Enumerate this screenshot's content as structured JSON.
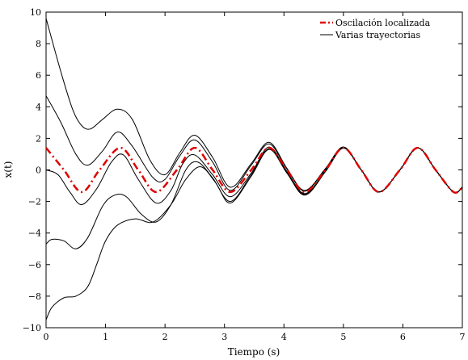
{
  "chart_data": {
    "type": "line",
    "title": "",
    "xlabel": "Tiempo (s)",
    "ylabel": "x(t)",
    "xlim": [
      0,
      7
    ],
    "ylim": [
      -10,
      10
    ],
    "xticks": [
      "0",
      "1",
      "2",
      "3",
      "4",
      "5",
      "6",
      "7"
    ],
    "yticks": [
      "10",
      "8",
      "6",
      "4",
      "2",
      "0",
      "−2",
      "−4",
      "−6",
      "−8",
      "−10"
    ],
    "grid": false,
    "legend_position": "top-right",
    "legend": [
      {
        "label": "Oscilación localizada",
        "style": "dash-dot",
        "color": "#e00000"
      },
      {
        "label": "Varias trayectorias",
        "style": "solid",
        "color": "#000000"
      }
    ],
    "series": [
      {
        "name": "Oscilación localizada",
        "color": "#e00000",
        "style": "dash-dot",
        "x": [
          0.0,
          0.3,
          0.6,
          0.9,
          1.25,
          1.55,
          1.85,
          2.2,
          2.5,
          2.8,
          3.1,
          3.45,
          3.75,
          4.05,
          4.35,
          4.7,
          5.0,
          5.3,
          5.6,
          5.95,
          6.25,
          6.55,
          6.85,
          7.0
        ],
        "y": [
          1.4,
          0.0,
          -1.4,
          0.0,
          1.4,
          0.0,
          -1.4,
          0.0,
          1.4,
          0.0,
          -1.4,
          0.0,
          1.4,
          0.0,
          -1.4,
          0.0,
          1.4,
          0.0,
          -1.4,
          0.0,
          1.4,
          0.0,
          -1.4,
          -1.1
        ]
      },
      {
        "name": "",
        "color": "#000000",
        "style": "solid",
        "x": [
          0.0,
          0.25,
          0.45,
          0.6,
          0.75,
          0.95,
          1.2,
          1.45,
          1.75,
          2.0,
          2.25,
          2.5,
          2.8,
          3.1,
          3.45,
          3.75,
          4.05,
          4.35,
          4.7,
          5.0,
          5.3,
          5.6,
          5.95,
          6.25,
          6.55,
          6.85,
          7.0
        ],
        "y": [
          9.6,
          6.2,
          3.8,
          2.8,
          2.6,
          3.2,
          3.85,
          3.2,
          0.6,
          -0.3,
          1.1,
          2.2,
          0.8,
          -1.1,
          0.4,
          1.75,
          0.1,
          -1.3,
          0.1,
          1.45,
          0.0,
          -1.4,
          0.0,
          1.4,
          0.0,
          -1.4,
          -1.1
        ]
      },
      {
        "name": "",
        "color": "#000000",
        "style": "solid",
        "x": [
          0.0,
          0.25,
          0.5,
          0.7,
          0.95,
          1.2,
          1.45,
          1.8,
          2.0,
          2.25,
          2.5,
          2.8,
          3.1,
          3.45,
          3.75,
          4.05,
          4.35,
          4.7,
          5.0,
          5.3,
          5.6,
          5.95,
          6.25,
          6.55,
          6.85,
          7.0
        ],
        "y": [
          4.7,
          3.0,
          1.0,
          0.3,
          1.2,
          2.4,
          1.5,
          -0.5,
          -0.6,
          0.9,
          1.9,
          0.5,
          -1.3,
          0.3,
          1.65,
          0.05,
          -1.35,
          0.05,
          1.45,
          0.0,
          -1.4,
          0.0,
          1.4,
          0.0,
          -1.4,
          -1.1
        ]
      },
      {
        "name": "",
        "color": "#000000",
        "style": "solid",
        "x": [
          0.0,
          0.2,
          0.4,
          0.6,
          0.85,
          1.1,
          1.3,
          1.55,
          1.85,
          2.1,
          2.3,
          2.5,
          2.8,
          3.1,
          3.45,
          3.75,
          4.05,
          4.35,
          4.7,
          5.0,
          5.3,
          5.6,
          5.95,
          6.25,
          6.55,
          6.85,
          7.0
        ],
        "y": [
          0.0,
          -0.3,
          -1.4,
          -2.2,
          -1.2,
          0.5,
          0.95,
          -0.6,
          -2.1,
          -1.3,
          0.4,
          0.95,
          -0.3,
          -1.7,
          -0.2,
          1.45,
          -0.1,
          -1.5,
          -0.05,
          1.4,
          0.0,
          -1.4,
          0.0,
          1.4,
          0.0,
          -1.4,
          -1.1
        ]
      },
      {
        "name": "",
        "color": "#000000",
        "style": "solid",
        "x": [
          0.0,
          0.1,
          0.3,
          0.5,
          0.7,
          0.95,
          1.15,
          1.35,
          1.6,
          1.85,
          2.1,
          2.35,
          2.55,
          2.8,
          3.1,
          3.45,
          3.75,
          4.05,
          4.35,
          4.7,
          5.0,
          5.3,
          5.6,
          5.95,
          6.25,
          6.55,
          6.85,
          7.0
        ],
        "y": [
          -4.7,
          -4.4,
          -4.5,
          -5.0,
          -4.3,
          -2.3,
          -1.6,
          -1.7,
          -2.8,
          -3.3,
          -2.2,
          0.0,
          0.5,
          -0.5,
          -2.0,
          -0.3,
          1.35,
          -0.15,
          -1.55,
          -0.05,
          1.4,
          0.0,
          -1.4,
          0.0,
          1.4,
          0.0,
          -1.4,
          -1.1
        ]
      },
      {
        "name": "",
        "color": "#000000",
        "style": "solid",
        "x": [
          0.0,
          0.1,
          0.3,
          0.5,
          0.7,
          0.85,
          1.0,
          1.2,
          1.5,
          1.8,
          2.1,
          2.35,
          2.6,
          2.85,
          3.1,
          3.45,
          3.75,
          4.05,
          4.35,
          4.7,
          5.0,
          5.3,
          5.6,
          5.95,
          6.25,
          6.55,
          6.85,
          7.0
        ],
        "y": [
          -9.5,
          -8.7,
          -8.1,
          -8.0,
          -7.4,
          -6.0,
          -4.5,
          -3.5,
          -3.1,
          -3.3,
          -2.2,
          -0.6,
          0.2,
          -0.8,
          -2.1,
          -0.4,
          1.3,
          -0.2,
          -1.6,
          -0.1,
          1.38,
          0.0,
          -1.4,
          0.0,
          1.4,
          0.0,
          -1.4,
          -1.1
        ]
      }
    ]
  }
}
